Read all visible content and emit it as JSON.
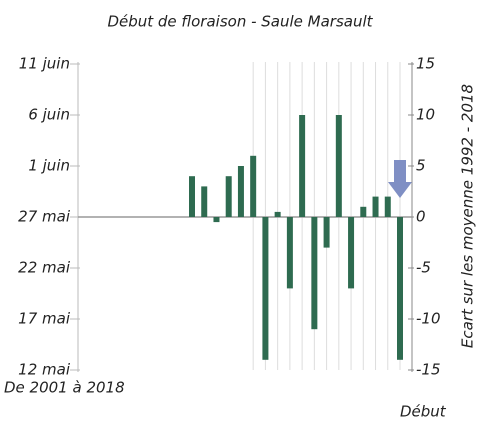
{
  "chart_data": {
    "type": "bar",
    "title": "Début de floraison - Saule Marsault",
    "subtitle": "De 2001 à 2018",
    "footnote": "Début",
    "y2_label": "Ecart sur les moyenne 1992 - 2018",
    "values": [
      4,
      3,
      -0.5,
      4,
      5,
      6,
      -14,
      0.5,
      -7,
      10,
      -11,
      -3,
      10,
      -7,
      1,
      2,
      2,
      -14
    ],
    "color": "#2e6b50",
    "ylim": [
      -15,
      15
    ],
    "yticks": [
      {
        "value": 15,
        "label": "11 juin"
      },
      {
        "value": 10,
        "label": "6 juin"
      },
      {
        "value": 5,
        "label": "1 juin"
      },
      {
        "value": 0,
        "label": "27 mai"
      },
      {
        "value": -5,
        "label": "22 mai"
      },
      {
        "value": -10,
        "label": "17 mai"
      },
      {
        "value": -15,
        "label": "12 mai"
      }
    ],
    "y2lim": [
      -15,
      15
    ],
    "y2ticks": [
      15,
      10,
      5,
      0,
      -5,
      -10,
      -15
    ]
  }
}
